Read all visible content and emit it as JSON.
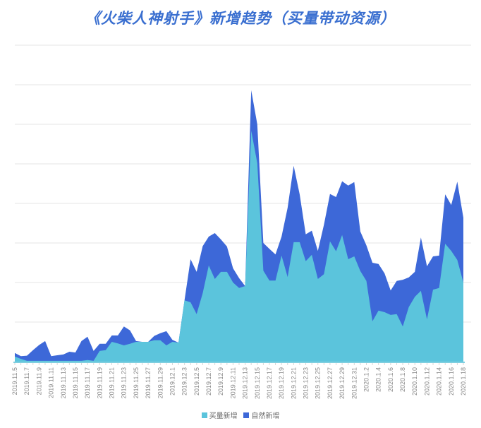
{
  "title": "《火柴人神射手》新增趋势（买量带动资源）",
  "colors": {
    "paid": "#5bc4dc",
    "organic": "#3d68d8",
    "grid": "#e4e4e4",
    "title": "#3a6fd0"
  },
  "legend": [
    {
      "label": "买量新增",
      "color": "#5bc4dc"
    },
    {
      "label": "自然新增",
      "color": "#3d68d8"
    }
  ],
  "chart_data": {
    "type": "area",
    "stacked": true,
    "title": "《火柴人神射手》新增趋势（买量带动资源）",
    "xlabel": "",
    "ylabel": "",
    "y_axis_labels_shown": false,
    "ylim": [
      0,
      800
    ],
    "grid": true,
    "gridline_count": 8,
    "legend_position": "bottom",
    "x_tick_labels": [
      "2019.11.5",
      "2019.11.7",
      "2019.11.9",
      "2019.11.11",
      "2019.11.13",
      "2019.11.15",
      "2019.11.17",
      "2019.11.19",
      "2019.11.21",
      "2019.11.23",
      "2019.11.25",
      "2019.11.27",
      "2019.11.29",
      "2019.12.1",
      "2019.12.3",
      "2019.12.5",
      "2019.12.7",
      "2019.12.9",
      "2019.12.11",
      "2019.12.13",
      "2019.12.15",
      "2019.12.17",
      "2019.12.19",
      "2019.12.21",
      "2019.12.23",
      "2019.12.25",
      "2019.12.27",
      "2019.12.29",
      "2019.12.31",
      "2020.1.2",
      "2020.1.4",
      "2020.1.6",
      "2020.1.8",
      "2020.1.10",
      "2020.1.12",
      "2020.1.14",
      "2020.1.16",
      "2020.1.18"
    ],
    "x_start": "2019.11.5",
    "x_end": "2020.1.18",
    "x_step_days": 1,
    "series": [
      {
        "name": "买量新增",
        "values": [
          13,
          7,
          2,
          2,
          2,
          2,
          2,
          2,
          2,
          2,
          2,
          2,
          4,
          2,
          27,
          29,
          50,
          46,
          41,
          45,
          50,
          50,
          50,
          54,
          54,
          41,
          50,
          48,
          155,
          150,
          120,
          173,
          243,
          209,
          227,
          227,
          200,
          186,
          191,
          584,
          502,
          230,
          205,
          205,
          268,
          214,
          302,
          302,
          254,
          270,
          209,
          221,
          304,
          279,
          320,
          259,
          266,
          229,
          204,
          102,
          129,
          125,
          118,
          120,
          89,
          138,
          164,
          179,
          107,
          182,
          186,
          298,
          280,
          257,
          200
        ]
      },
      {
        "name": "自然新增",
        "values": [
          9,
          7,
          13,
          27,
          40,
          50,
          12,
          14,
          16,
          23,
          21,
          50,
          59,
          25,
          18,
          16,
          16,
          20,
          48,
          34,
          2,
          0,
          0,
          11,
          18,
          36,
          5,
          0,
          0,
          109,
          107,
          119,
          73,
          116,
          82,
          64,
          36,
          25,
          0,
          102,
          98,
          70,
          80,
          66,
          48,
          175,
          193,
          121,
          68,
          61,
          71,
          125,
          120,
          137,
          136,
          186,
          188,
          100,
          90,
          148,
          118,
          98,
          62,
          84,
          118,
          75,
          63,
          135,
          134,
          84,
          82,
          125,
          116,
          198,
          164
        ]
      }
    ],
    "totals": [
      22,
      14,
      15,
      29,
      42,
      52,
      14,
      16,
      18,
      25,
      23,
      52,
      63,
      27,
      45,
      45,
      66,
      66,
      89,
      79,
      52,
      50,
      50,
      65,
      72,
      77,
      55,
      48,
      155,
      259,
      227,
      292,
      316,
      325,
      309,
      291,
      236,
      211,
      191,
      686,
      600,
      300,
      285,
      271,
      316,
      389,
      495,
      423,
      322,
      331,
      280,
      346,
      424,
      416,
      456,
      445,
      454,
      329,
      294,
      250,
      247,
      223,
      180,
      204,
      207,
      213,
      227,
      314,
      241,
      266,
      268,
      423,
      396,
      455,
      364
    ]
  },
  "x_labels": [
    "2019.11.5",
    "2019.11.7",
    "2019.11.9",
    "2019.11.11",
    "2019.11.13",
    "2019.11.15",
    "2019.11.17",
    "2019.11.19",
    "2019.11.21",
    "2019.11.23",
    "2019.11.25",
    "2019.11.27",
    "2019.11.29",
    "2019.12.1",
    "2019.12.3",
    "2019.12.5",
    "2019.12.7",
    "2019.12.9",
    "2019.12.11",
    "2019.12.13",
    "2019.12.15",
    "2019.12.17",
    "2019.12.19",
    "2019.12.21",
    "2019.12.23",
    "2019.12.25",
    "2019.12.27",
    "2019.12.29",
    "2019.12.31",
    "2020.1.2",
    "2020.1.4",
    "2020.1.6",
    "2020.1.8",
    "2020.1.10",
    "2020.1.12",
    "2020.1.14",
    "2020.1.16",
    "2020.1.18"
  ]
}
